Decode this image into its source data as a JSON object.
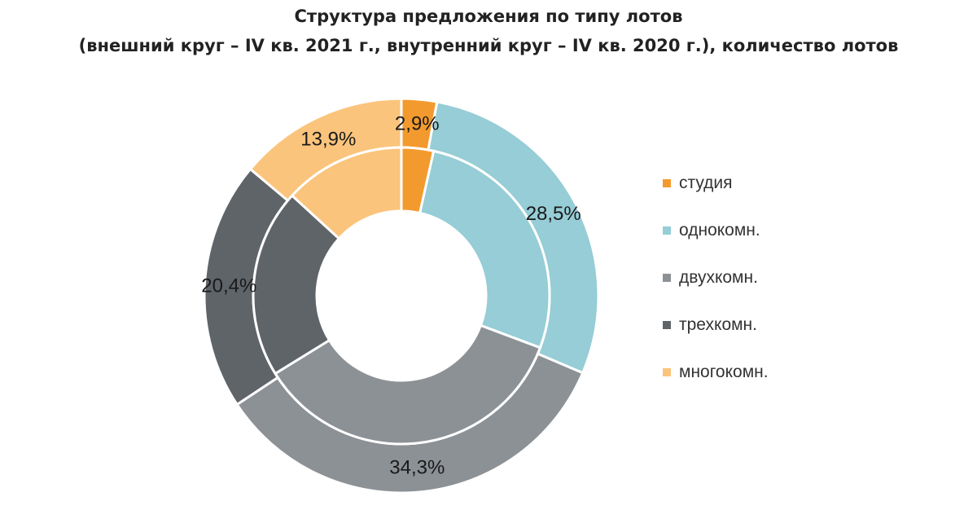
{
  "title": "Структура предложения по типу лотов",
  "subtitle": "(внешний круг – IV кв. 2021 г., внутренний круг – IV кв. 2020 г.), количество лотов",
  "chart_data": {
    "type": "donut",
    "categories": [
      "студия",
      "однокомн.",
      "двухкомн.",
      "трехкомн.",
      "многокомн."
    ],
    "colors": [
      "#f39a2e",
      "#96cdd6",
      "#8c9196",
      "#5f6469",
      "#fbc47c"
    ],
    "series": [
      {
        "ring": "outer",
        "values": [
          2.9,
          28.5,
          34.3,
          20.4,
          13.9
        ],
        "labels": [
          "2,9%",
          "28,5%",
          "34,3%",
          "20,4%",
          "13,9%"
        ]
      },
      {
        "ring": "inner",
        "values": [
          3.5,
          27.2,
          35.5,
          20.6,
          13.2
        ]
      }
    ],
    "legend_position": "right"
  }
}
